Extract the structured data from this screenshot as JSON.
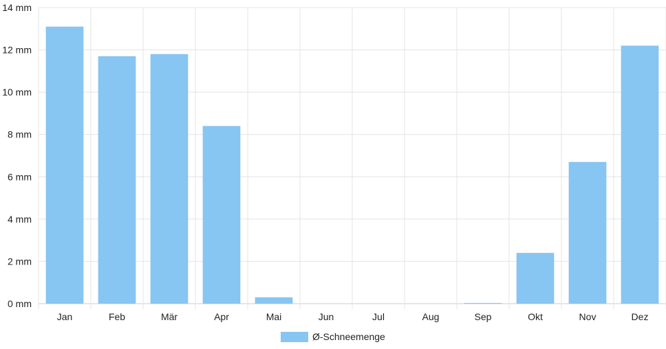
{
  "chart_data": {
    "type": "bar",
    "categories": [
      "Jan",
      "Feb",
      "Mär",
      "Apr",
      "Mai",
      "Jun",
      "Jul",
      "Aug",
      "Sep",
      "Okt",
      "Nov",
      "Dez"
    ],
    "series": [
      {
        "name": "Ø-Schneemenge",
        "values": [
          13.1,
          11.7,
          11.8,
          8.4,
          0.3,
          0,
          0,
          0,
          0.02,
          2.4,
          6.7,
          12.2
        ],
        "color": "#87c5f2"
      }
    ],
    "y_unit": "mm",
    "y_ticks": [
      "0 mm",
      "2 mm",
      "4 mm",
      "6 mm",
      "8 mm",
      "10 mm",
      "12 mm",
      "14 mm"
    ],
    "ylim": [
      0,
      14
    ],
    "grid": true,
    "legend_position": "bottom"
  }
}
